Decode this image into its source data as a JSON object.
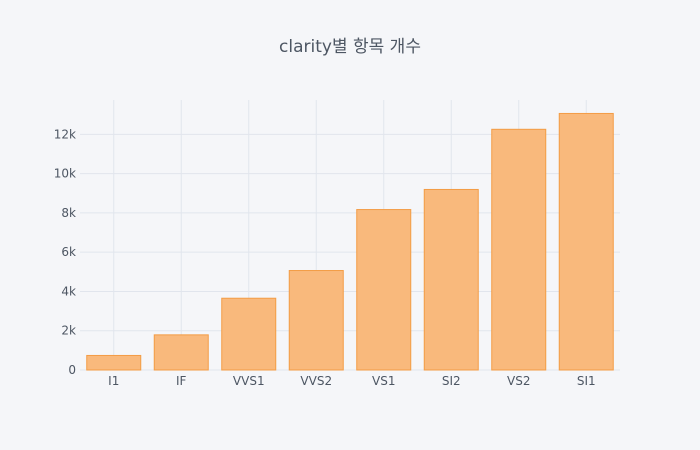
{
  "chart_data": {
    "type": "bar",
    "title": "clarity별 항목 개수",
    "xlabel": "",
    "ylabel": "",
    "categories": [
      "I1",
      "IF",
      "VVS1",
      "VVS2",
      "VS1",
      "SI2",
      "VS2",
      "SI1"
    ],
    "values": [
      741,
      1790,
      3655,
      5066,
      8171,
      9194,
      12258,
      13065
    ],
    "ylim": [
      0,
      13750
    ],
    "yticks": [
      0,
      2000,
      4000,
      6000,
      8000,
      10000,
      12000
    ],
    "ytick_labels": [
      "0",
      "2k",
      "4k",
      "6k",
      "8k",
      "10k",
      "12k"
    ],
    "grid": true,
    "legend": "none",
    "colors": {
      "bar_fill": "#f9b97c",
      "bar_stroke": "#f39c45",
      "grid": "#e1e5ed",
      "background": "#f5f6f9",
      "text": "#4d5663"
    }
  }
}
